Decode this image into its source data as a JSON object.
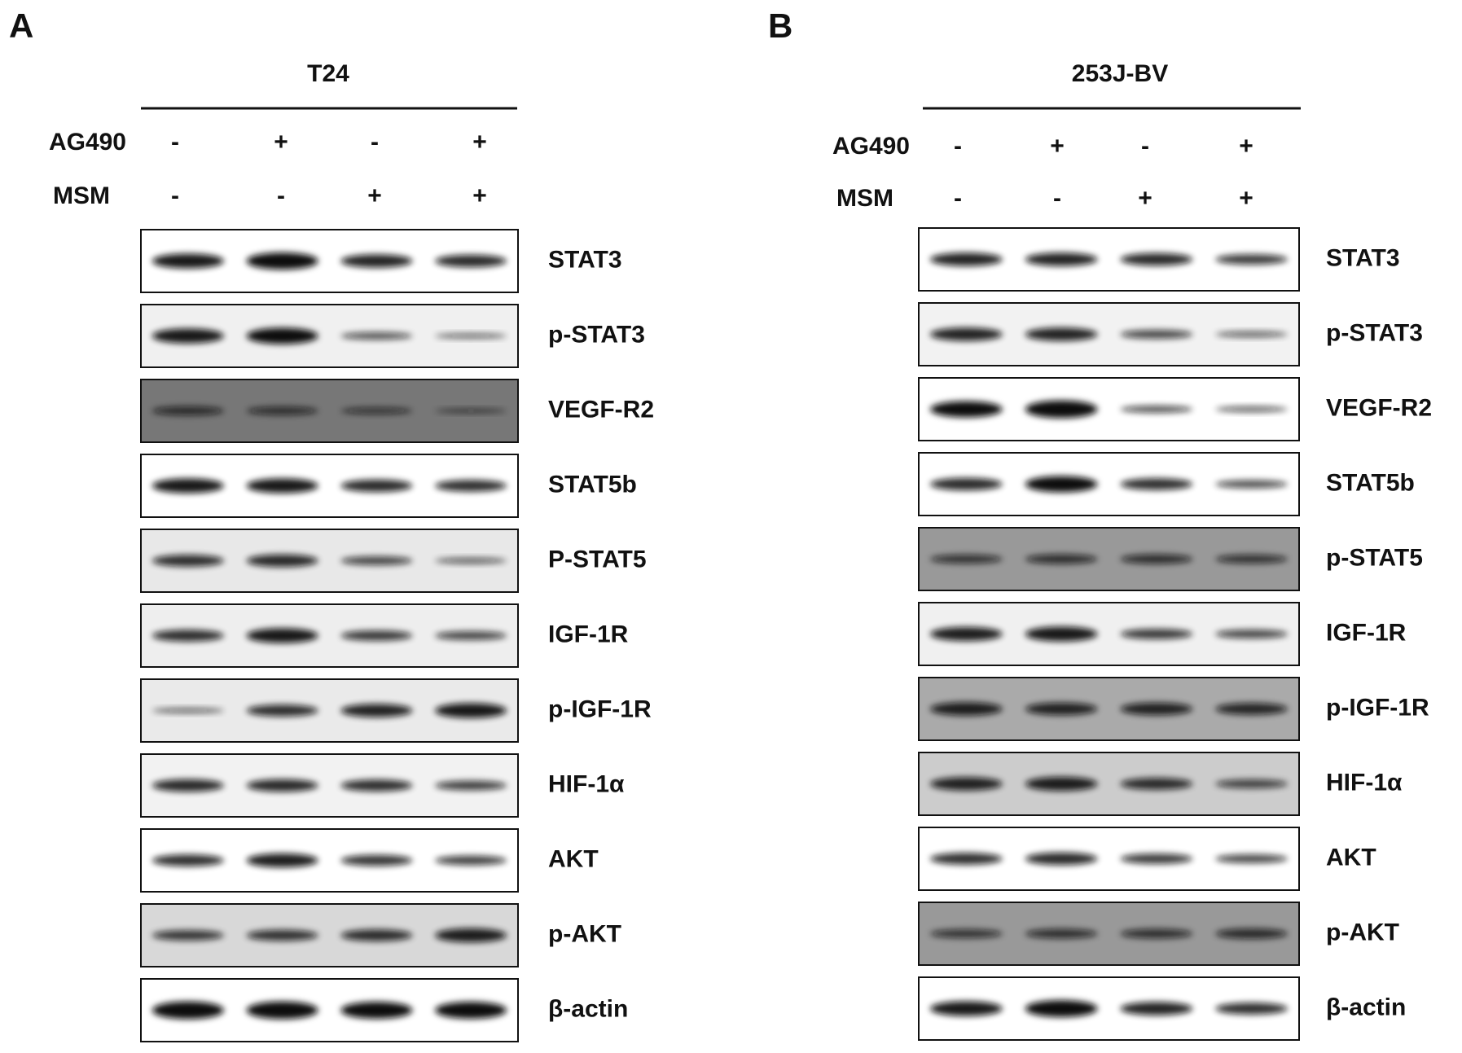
{
  "panels": [
    {
      "label": "A",
      "cell_line": "T24",
      "treatments": [
        {
          "name": "AG490",
          "signs": [
            "-",
            "+",
            "-",
            "+"
          ]
        },
        {
          "name": "MSM",
          "signs": [
            "-",
            "-",
            "+",
            "+"
          ]
        }
      ],
      "blots": [
        "STAT3",
        "p-STAT3",
        "VEGF-R2",
        "STAT5b",
        "P-STAT5",
        "IGF-1R",
        "p-IGF-1R",
        "HIF-1α",
        "AKT",
        "p-AKT",
        "β-actin"
      ]
    },
    {
      "label": "B",
      "cell_line": "253J-BV",
      "treatments": [
        {
          "name": "AG490",
          "signs": [
            "-",
            "+",
            "-",
            "+"
          ]
        },
        {
          "name": "MSM",
          "signs": [
            "-",
            "-",
            "+",
            "+"
          ]
        }
      ],
      "blots": [
        "STAT3",
        "p-STAT3",
        "VEGF-R2",
        "STAT5b",
        "p-STAT5",
        "IGF-1R",
        "p-IGF-1R",
        "HIF-1α",
        "AKT",
        "p-AKT",
        "β-actin"
      ]
    }
  ]
}
